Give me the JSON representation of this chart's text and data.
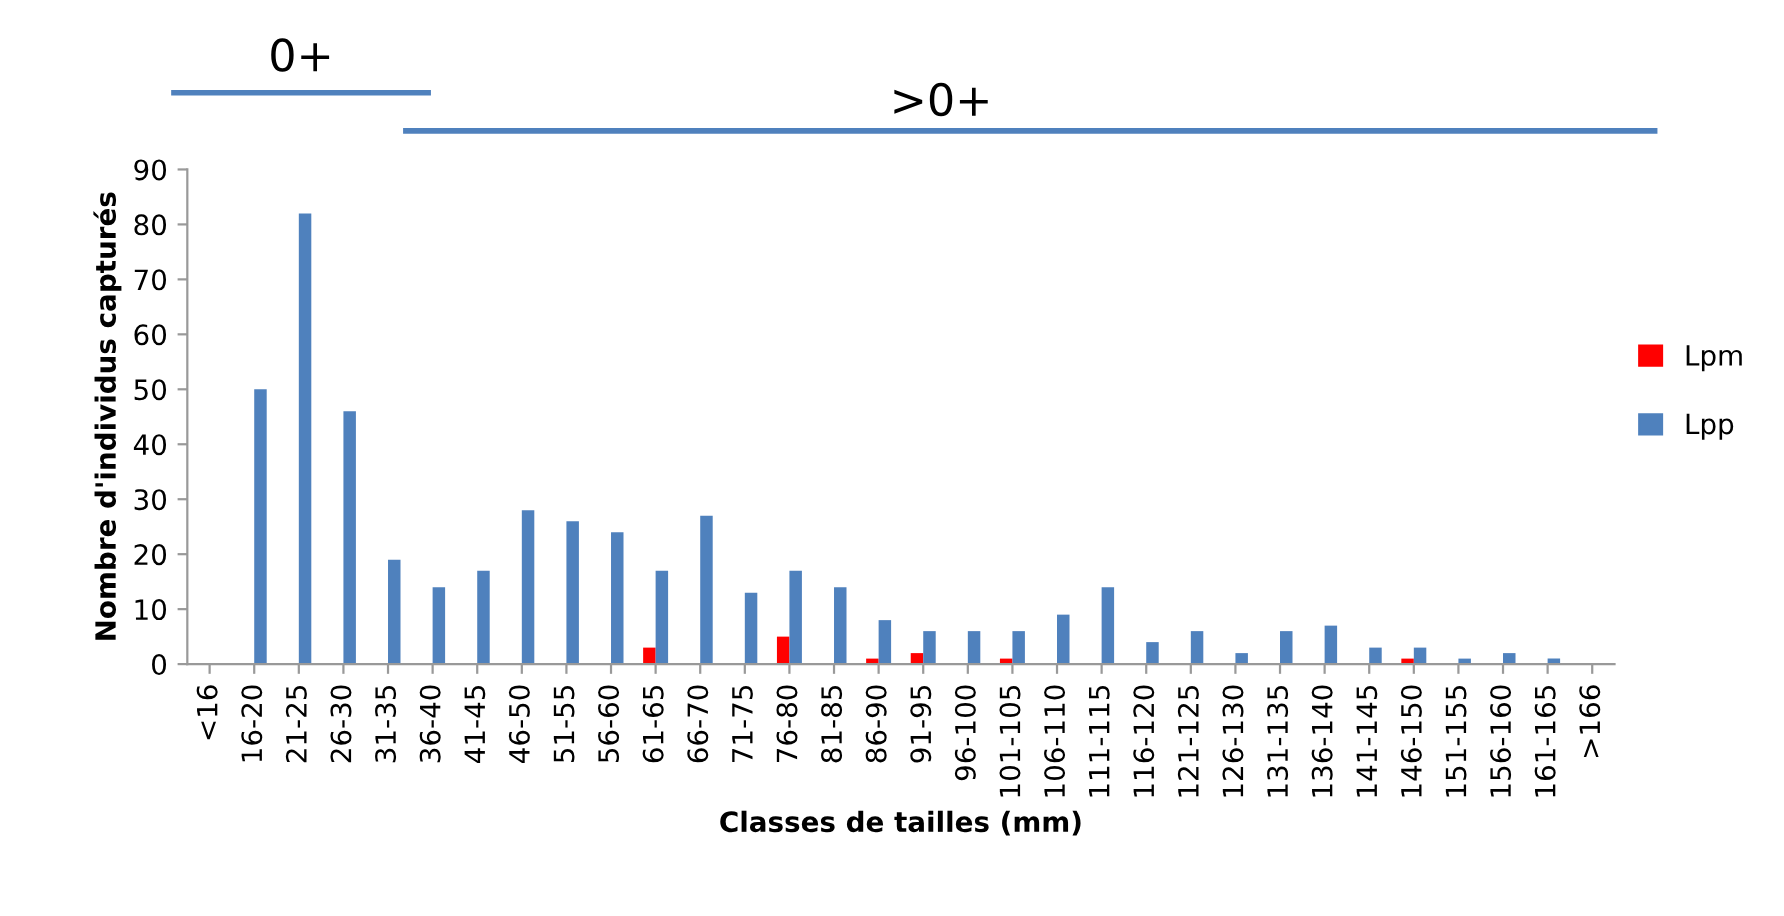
{
  "chart_data": {
    "type": "bar",
    "xlabel": "Classes de tailles (mm)",
    "ylabel": "Nombre d'individus capturés",
    "categories": [
      "<16",
      "16-20",
      "21-25",
      "26-30",
      "31-35",
      "36-40",
      "41-45",
      "46-50",
      "51-55",
      "56-60",
      "61-65",
      "66-70",
      "71-75",
      "76-80",
      "81-85",
      "86-90",
      "91-95",
      "96-100",
      "101-105",
      "106-110",
      "111-115",
      "116-120",
      "121-125",
      "126-130",
      "131-135",
      "136-140",
      "141-145",
      "146-150",
      "151-155",
      "156-160",
      "161-165",
      ">166"
    ],
    "series": [
      {
        "name": "Lpm",
        "color": "#ff0000",
        "values": [
          0,
          0,
          0,
          0,
          0,
          0,
          0,
          0,
          0,
          0,
          3,
          0,
          0,
          5,
          0,
          1,
          2,
          0,
          1,
          0,
          0,
          0,
          0,
          0,
          0,
          0,
          0,
          1,
          0,
          0,
          0,
          0
        ]
      },
      {
        "name": "Lpp",
        "color": "#4f81bd",
        "values": [
          0,
          50,
          82,
          46,
          19,
          14,
          17,
          28,
          26,
          24,
          17,
          27,
          13,
          17,
          14,
          8,
          6,
          6,
          6,
          9,
          14,
          4,
          6,
          2,
          6,
          7,
          3,
          3,
          1,
          2,
          1,
          0
        ]
      }
    ],
    "ylim": [
      0,
      90
    ],
    "yticks": [
      0,
      10,
      20,
      30,
      40,
      50,
      60,
      70,
      80,
      90
    ],
    "grid": false,
    "legend": "right",
    "annotations": [
      "0+",
      ">0+"
    ]
  }
}
